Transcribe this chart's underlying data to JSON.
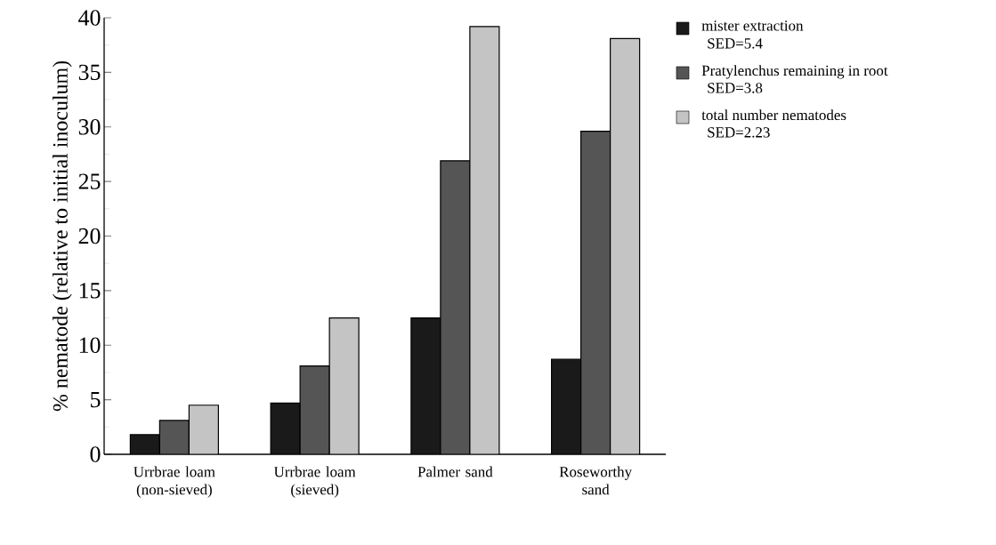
{
  "chart_data": {
    "type": "bar",
    "ylabel": "% nematode (relative to initial inoculum)",
    "categories": [
      "Urrbrae loam (non-sieved)",
      "Urrbrae loam (sieved)",
      "Palmer sand",
      "Roseworthy sand"
    ],
    "series": [
      {
        "name": "mister extraction",
        "color": "#1a1a1a",
        "values": [
          1.8,
          4.7,
          12.5,
          8.7
        ]
      },
      {
        "name": "Pratylenchus remaining in root",
        "color": "#555555",
        "values": [
          3.1,
          8.1,
          26.9,
          29.6
        ]
      },
      {
        "name": "total number nematodes",
        "color": "#c4c4c4",
        "values": [
          4.5,
          12.5,
          39.2,
          38.1
        ]
      }
    ],
    "annotations": [
      "SED=5.4",
      "SED=3.8",
      "SED=2.23"
    ],
    "ylim": [
      0,
      40
    ],
    "yticks": [
      0,
      5,
      10,
      15,
      20,
      25,
      30,
      35,
      40
    ],
    "grid": false,
    "legend": "top right"
  }
}
